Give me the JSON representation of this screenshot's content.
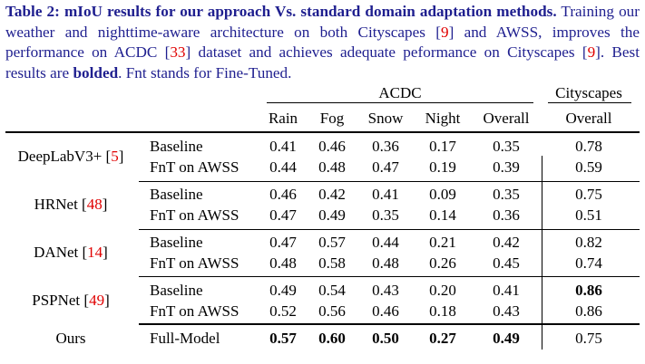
{
  "caption": {
    "label": "Table 2:",
    "title": "mIoU results for our approach Vs.  standard domain adaptation methods.",
    "body_1": "Training our weather and nighttime-aware architecture on both Cityscapes [",
    "ref_1": "9",
    "body_2": "] and AWSS, improves the performance on ACDC [",
    "ref_2": "33",
    "body_3": "] dataset and achieves adequate peformance on Cityscapes [",
    "ref_3": "9",
    "body_4": "]. Best results are ",
    "bolded_word": "bolded",
    "body_5": ". Fnt stands for Fine-Tuned."
  },
  "table": {
    "group_headers": {
      "acdc": "ACDC",
      "cityscapes": "Cityscapes"
    },
    "columns": [
      "Rain",
      "Fog",
      "Snow",
      "Night",
      "Overall",
      "Overall"
    ],
    "models": [
      {
        "name": "DeepLabV3+ [",
        "ref": "5",
        "close": "]",
        "rows": [
          {
            "method": "Baseline",
            "values": [
              "0.41",
              "0.46",
              "0.36",
              "0.17",
              "0.35",
              "0.78"
            ]
          },
          {
            "method": "FnT on AWSS",
            "values": [
              "0.44",
              "0.48",
              "0.47",
              "0.19",
              "0.39",
              "0.59"
            ]
          }
        ]
      },
      {
        "name": "HRNet [",
        "ref": "48",
        "close": "]",
        "rows": [
          {
            "method": "Baseline",
            "values": [
              "0.46",
              "0.42",
              "0.41",
              "0.09",
              "0.35",
              "0.75"
            ]
          },
          {
            "method": "FnT on AWSS",
            "values": [
              "0.47",
              "0.49",
              "0.35",
              "0.14",
              "0.36",
              "0.51"
            ]
          }
        ]
      },
      {
        "name": "DANet [",
        "ref": "14",
        "close": "]",
        "rows": [
          {
            "method": "Baseline",
            "values": [
              "0.47",
              "0.57",
              "0.44",
              "0.21",
              "0.42",
              "0.82"
            ]
          },
          {
            "method": "FnT on AWSS",
            "values": [
              "0.48",
              "0.58",
              "0.48",
              "0.26",
              "0.45",
              "0.74"
            ]
          }
        ]
      },
      {
        "name": "PSPNet [",
        "ref": "49",
        "close": "]",
        "rows": [
          {
            "method": "Baseline",
            "values": [
              "0.49",
              "0.54",
              "0.43",
              "0.20",
              "0.41",
              "0.86"
            ]
          },
          {
            "method": "FnT on AWSS",
            "values": [
              "0.52",
              "0.56",
              "0.46",
              "0.18",
              "0.43",
              "0.86"
            ]
          }
        ]
      },
      {
        "name": "Ours",
        "ref": "",
        "close": "",
        "rows": [
          {
            "method": "Full-Model",
            "values": [
              "0.57",
              "0.60",
              "0.50",
              "0.27",
              "0.49",
              "0.75"
            ]
          }
        ]
      }
    ]
  }
}
